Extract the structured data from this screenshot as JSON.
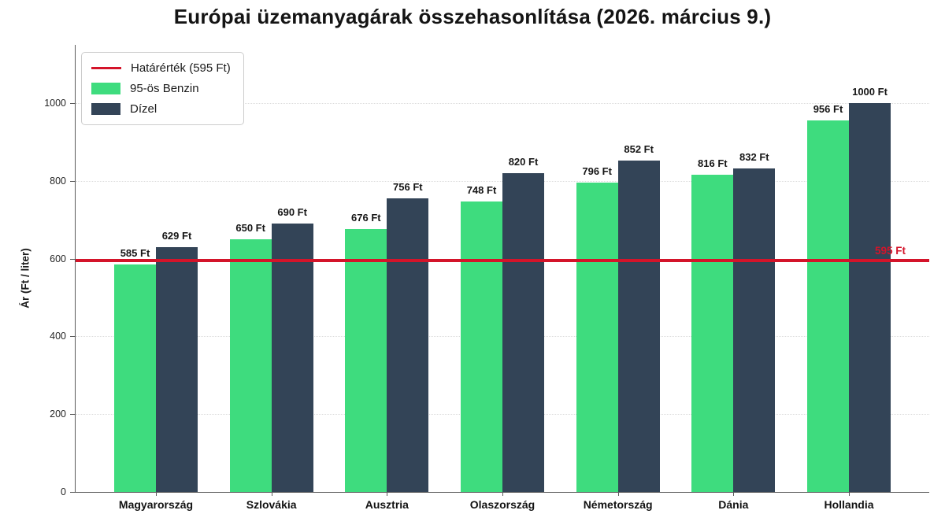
{
  "chart_data": {
    "type": "bar",
    "title": "Európai üzemanyagárak összehasonlítása (2026. március 9.)",
    "xlabel": "",
    "ylabel": "Ár (Ft / liter)",
    "categories": [
      "Magyarország",
      "Szlovákia",
      "Ausztria",
      "Olaszország",
      "Németország",
      "Dánia",
      "Hollandia"
    ],
    "series": [
      {
        "name": "95-ös Benzin",
        "color": "#3edc7e",
        "values": [
          585,
          650,
          676,
          748,
          796,
          816,
          956
        ]
      },
      {
        "name": "Dízel",
        "color": "#334457",
        "values": [
          629,
          690,
          756,
          820,
          852,
          832,
          1000
        ]
      }
    ],
    "threshold": {
      "label": "Határérték (595 Ft)",
      "value": 595,
      "annotation": "595 Ft",
      "color": "#d4142a"
    },
    "value_suffix": " Ft",
    "yticks": [
      0,
      200,
      400,
      600,
      800,
      1000
    ],
    "ylim": [
      0,
      1150
    ],
    "grid": "dotted-horizontal",
    "legend_position": "upper-left",
    "legend_entries": [
      "Határérték (595 Ft)",
      "95-ös Benzin",
      "Dízel"
    ]
  }
}
